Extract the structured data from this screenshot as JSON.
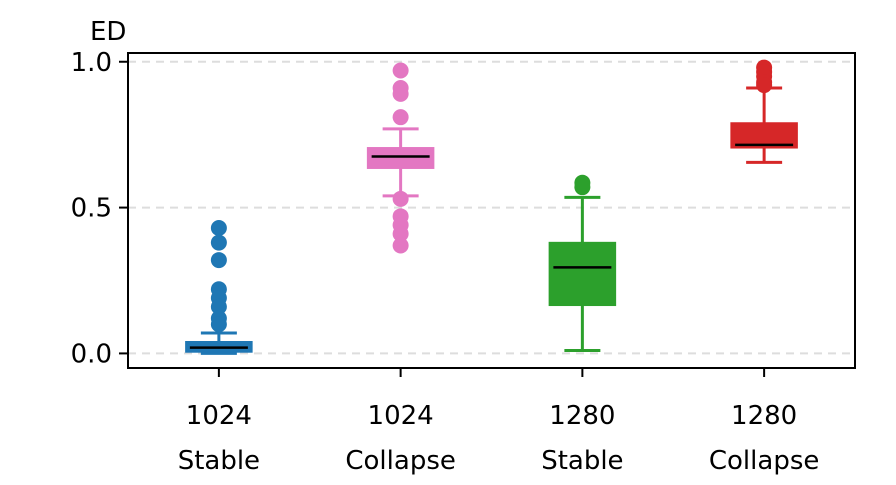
{
  "chart_data": {
    "type": "box",
    "title": "",
    "xlabel": "",
    "ylabel": "ED",
    "ylim": [
      -0.05,
      1.03
    ],
    "yticks": [
      {
        "value": 0.0,
        "label": "0.0"
      },
      {
        "value": 0.5,
        "label": "0.5"
      },
      {
        "value": 1.0,
        "label": "1.0"
      }
    ],
    "grid": "horizontal-dashed",
    "categories": [
      {
        "line1": "1024",
        "line2": "Stable"
      },
      {
        "line1": "1024",
        "line2": "Collapse"
      },
      {
        "line1": "1280",
        "line2": "Stable"
      },
      {
        "line1": "1280",
        "line2": "Collapse"
      }
    ],
    "boxes": [
      {
        "color": "#1f77b4",
        "whisker_low": 0.0,
        "q1": 0.005,
        "median": 0.02,
        "q3": 0.04,
        "whisker_high": 0.07,
        "outliers": [
          0.43,
          0.38,
          0.32,
          0.22,
          0.19,
          0.16,
          0.12,
          0.1
        ]
      },
      {
        "color": "#e377c2",
        "whisker_low": 0.54,
        "q1": 0.635,
        "median": 0.675,
        "q3": 0.705,
        "whisker_high": 0.77,
        "outliers": [
          0.97,
          0.91,
          0.89,
          0.81,
          0.53,
          0.47,
          0.44,
          0.41,
          0.37
        ]
      },
      {
        "color": "#2ca02c",
        "whisker_low": 0.01,
        "q1": 0.165,
        "median": 0.295,
        "q3": 0.38,
        "whisker_high": 0.535,
        "outliers": [
          0.585,
          0.57
        ]
      },
      {
        "color": "#d62728",
        "whisker_low": 0.655,
        "q1": 0.705,
        "median": 0.715,
        "q3": 0.79,
        "whisker_high": 0.91,
        "outliers": [
          0.98,
          0.965,
          0.95,
          0.93,
          0.92
        ]
      }
    ]
  }
}
